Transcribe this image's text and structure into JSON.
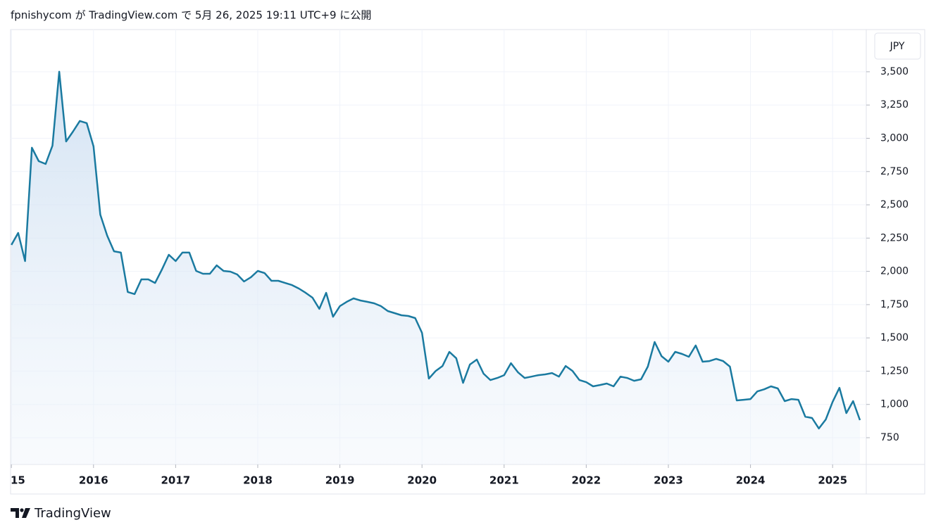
{
  "header": {
    "title": "fpnishycom が TradingView.com で 5月 26, 2025 19:11 UTC+9 に公開"
  },
  "footer": {
    "brand": "TradingView"
  },
  "chart_data": {
    "type": "area",
    "currency": "JPY",
    "color": "#1a7aa0",
    "grid": true,
    "x": [
      2015.0,
      2015.083,
      2015.167,
      2015.25,
      2015.333,
      2015.417,
      2015.5,
      2015.583,
      2015.667,
      2015.75,
      2015.833,
      2015.917,
      2016.0,
      2016.083,
      2016.167,
      2016.25,
      2016.333,
      2016.417,
      2016.5,
      2016.583,
      2016.667,
      2016.75,
      2016.833,
      2016.917,
      2017.0,
      2017.083,
      2017.167,
      2017.25,
      2017.333,
      2017.417,
      2017.5,
      2017.583,
      2017.667,
      2017.75,
      2017.833,
      2017.917,
      2018.0,
      2018.083,
      2018.167,
      2018.25,
      2018.333,
      2018.417,
      2018.5,
      2018.583,
      2018.667,
      2018.75,
      2018.833,
      2018.917,
      2019.0,
      2019.083,
      2019.167,
      2019.25,
      2019.333,
      2019.417,
      2019.5,
      2019.583,
      2019.667,
      2019.75,
      2019.833,
      2019.917,
      2020.0,
      2020.083,
      2020.167,
      2020.25,
      2020.333,
      2020.417,
      2020.5,
      2020.583,
      2020.667,
      2020.75,
      2020.833,
      2020.917,
      2021.0,
      2021.083,
      2021.167,
      2021.25,
      2021.333,
      2021.417,
      2021.5,
      2021.583,
      2021.667,
      2021.75,
      2021.833,
      2021.917,
      2022.0,
      2022.083,
      2022.167,
      2022.25,
      2022.333,
      2022.417,
      2022.5,
      2022.583,
      2022.667,
      2022.75,
      2022.833,
      2022.917,
      2023.0,
      2023.083,
      2023.167,
      2023.25,
      2023.333,
      2023.417,
      2023.5,
      2023.583,
      2023.667,
      2023.75,
      2023.833,
      2023.917,
      2024.0,
      2024.083,
      2024.167,
      2024.25,
      2024.333,
      2024.417,
      2024.5,
      2024.583,
      2024.667,
      2024.75,
      2024.833,
      2024.917,
      2025.0,
      2025.083,
      2025.167,
      2025.25,
      2025.333
    ],
    "values": [
      2199,
      2289,
      2077,
      2929,
      2828,
      2807,
      2945,
      3500,
      2976,
      3050,
      3130,
      3114,
      2939,
      2426,
      2268,
      2151,
      2141,
      1845,
      1829,
      1940,
      1940,
      1913,
      2014,
      2125,
      2077,
      2141,
      2141,
      2003,
      1982,
      1982,
      2045,
      2003,
      1998,
      1977,
      1924,
      1956,
      2003,
      1987,
      1929,
      1929,
      1913,
      1897,
      1871,
      1839,
      1802,
      1718,
      1839,
      1659,
      1739,
      1771,
      1797,
      1781,
      1771,
      1760,
      1739,
      1702,
      1686,
      1670,
      1665,
      1649,
      1538,
      1194,
      1252,
      1289,
      1395,
      1347,
      1162,
      1300,
      1337,
      1231,
      1183,
      1199,
      1220,
      1310,
      1242,
      1199,
      1209,
      1220,
      1226,
      1236,
      1209,
      1289,
      1252,
      1183,
      1167,
      1136,
      1146,
      1157,
      1136,
      1209,
      1199,
      1178,
      1189,
      1284,
      1469,
      1363,
      1321,
      1395,
      1379,
      1358,
      1443,
      1321,
      1326,
      1342,
      1326,
      1284,
      1030,
      1035,
      1040,
      1098,
      1114,
      1136,
      1120,
      1025,
      1040,
      1035,
      908,
      898,
      819,
      887,
      1019,
      1125,
      935,
      1025,
      882
    ],
    "xlim": [
      2014.99,
      2025.41
    ],
    "xticks": [
      {
        "value": 2015,
        "label": "15"
      },
      2016,
      2017,
      2018,
      2019,
      2020,
      2021,
      2022,
      2023,
      2024,
      2025
    ],
    "ylim": [
      549,
      3817
    ],
    "yticks": [
      750,
      {
        "value": 1000,
        "label": "1,000"
      },
      {
        "value": 1250,
        "label": "1,250"
      },
      {
        "value": 1500,
        "label": "1,500"
      },
      {
        "value": 1750,
        "label": "1,750"
      },
      {
        "value": 2000,
        "label": "2,000"
      },
      {
        "value": 2250,
        "label": "2,250"
      },
      {
        "value": 2500,
        "label": "2,500"
      },
      {
        "value": 2750,
        "label": "2,750"
      },
      {
        "value": 3000,
        "label": "3,000"
      },
      {
        "value": 3250,
        "label": "3,250"
      },
      {
        "value": 3500,
        "label": "3,500"
      }
    ]
  }
}
